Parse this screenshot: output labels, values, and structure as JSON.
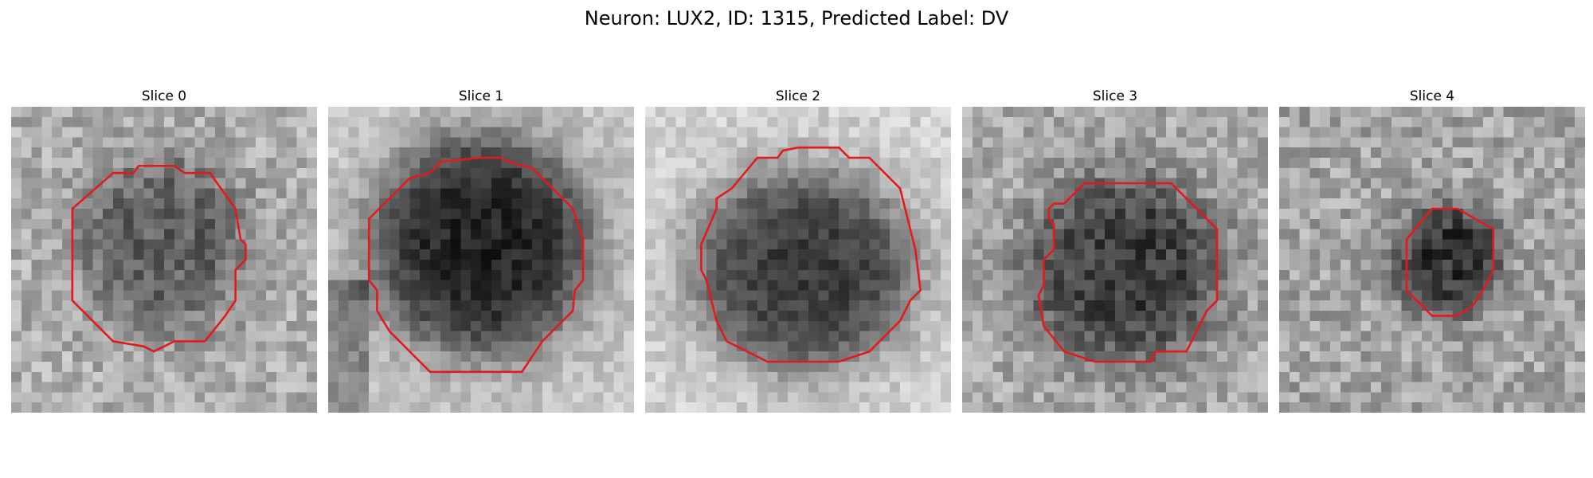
{
  "figure": {
    "title": "Neuron: LUX2, ID: 1315, Predicted Label: DV"
  },
  "panels": [
    {
      "title": "Slice 0",
      "image": "grayscale-microscopy-slice-0",
      "outline_color": "#e31a1c"
    },
    {
      "title": "Slice 1",
      "image": "grayscale-microscopy-slice-1",
      "outline_color": "#e31a1c"
    },
    {
      "title": "Slice 2",
      "image": "grayscale-microscopy-slice-2",
      "outline_color": "#e31a1c"
    },
    {
      "title": "Slice 3",
      "image": "grayscale-microscopy-slice-3",
      "outline_color": "#e31a1c"
    },
    {
      "title": "Slice 4",
      "image": "grayscale-microscopy-slice-4",
      "outline_color": "#e31a1c"
    }
  ]
}
